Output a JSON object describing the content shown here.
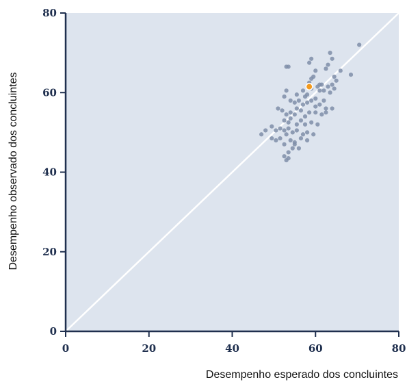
{
  "chart_data": {
    "type": "scatter",
    "xlabel": "Desempenho esperado dos concluintes",
    "ylabel": "Desempenho observado dos concluintes",
    "xlim": [
      0,
      80
    ],
    "ylim": [
      0,
      80
    ],
    "xticks": [
      "0",
      "20",
      "40",
      "60",
      "80"
    ],
    "yticks": [
      "0",
      "20",
      "40",
      "60",
      "80"
    ],
    "grid": false,
    "reference_line": {
      "type": "identity",
      "color": "#ffffff"
    },
    "colors": {
      "background": "#dde4ee",
      "axis": "#1f2f4e",
      "points": "#7f8ea8",
      "highlight": "#f39a1e"
    },
    "series": [
      {
        "x": [
          53.5,
          58.5,
          59.0,
          63.5,
          64.0,
          59.5,
          60.0,
          61.0,
          62.5,
          63.0,
          64.5,
          66.0,
          68.5,
          70.5,
          58.5,
          59.0,
          60.5,
          61.5,
          62.0,
          63.0,
          64.0,
          65.0,
          57.0,
          57.5,
          58.0,
          59.0,
          60.0,
          61.0,
          62.0,
          63.5,
          64.5,
          52.5,
          53.0,
          54.0,
          55.0,
          55.5,
          56.0,
          57.0,
          58.0,
          59.0,
          60.0,
          61.0,
          62.5,
          64.0,
          51.0,
          52.0,
          53.0,
          54.0,
          55.0,
          55.5,
          56.5,
          57.5,
          58.5,
          60.0,
          61.5,
          62.5,
          52.5,
          53.5,
          54.0,
          55.5,
          56.5,
          57.5,
          59.0,
          60.5,
          49.5,
          50.5,
          51.5,
          52.5,
          53.0,
          53.5,
          54.5,
          55.5,
          57.0,
          58.0,
          59.5,
          47.0,
          48.0,
          49.5,
          50.5,
          51.5,
          52.5,
          54.0,
          55.0,
          56.5,
          58.0,
          52.5,
          53.0,
          53.5,
          54.5,
          55.0,
          56.0,
          53.0,
          53.5
        ],
        "y": [
          66.5,
          67.5,
          68.5,
          70.0,
          68.5,
          64.0,
          65.5,
          62.0,
          66.0,
          67.0,
          64.0,
          65.5,
          64.5,
          72.0,
          62.5,
          63.5,
          61.5,
          62.0,
          60.5,
          61.5,
          62.0,
          63.0,
          60.5,
          59.0,
          59.5,
          61.0,
          58.5,
          60.5,
          58.0,
          60.0,
          61.0,
          59.0,
          60.5,
          58.0,
          57.5,
          59.5,
          58.0,
          57.0,
          57.5,
          58.0,
          56.5,
          57.0,
          56.0,
          56.0,
          56.0,
          55.5,
          54.5,
          55.0,
          54.5,
          56.0,
          55.5,
          54.0,
          55.0,
          55.0,
          54.5,
          55.0,
          53.0,
          52.5,
          53.5,
          52.0,
          53.0,
          52.0,
          52.5,
          52.0,
          51.5,
          50.5,
          51.0,
          50.5,
          49.5,
          51.0,
          50.0,
          50.5,
          49.5,
          50.0,
          49.5,
          49.5,
          50.5,
          48.5,
          48.0,
          48.5,
          47.0,
          48.0,
          47.5,
          48.5,
          48.0,
          44.0,
          43.0,
          45.0,
          46.0,
          47.0,
          46.0,
          66.5,
          43.5
        ]
      },
      {
        "x": [
          58.5
        ],
        "y": [
          61.5
        ],
        "highlight": true
      }
    ]
  }
}
